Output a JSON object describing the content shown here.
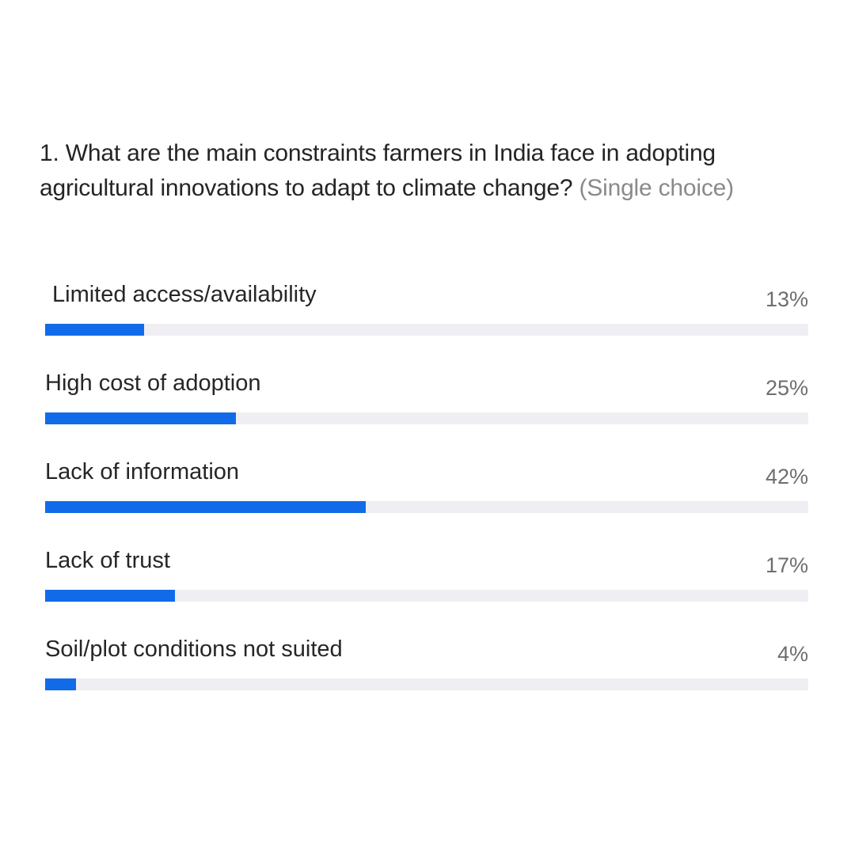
{
  "poll": {
    "question": {
      "text": "1. What are the main constraints farmers in India face in adopting agricultural innovations to adapt to climate change?",
      "type_label": "(Single choice)"
    },
    "options": [
      {
        "label": "Limited access/availability",
        "percent_label": "13%",
        "percent": 13
      },
      {
        "label": "High cost of adoption",
        "percent_label": "25%",
        "percent": 25
      },
      {
        "label": "Lack of information",
        "percent_label": "42%",
        "percent": 42
      },
      {
        "label": "Lack of trust",
        "percent_label": "17%",
        "percent": 17
      },
      {
        "label": "Soil/plot conditions not suited",
        "percent_label": "4%",
        "percent": 4
      }
    ]
  },
  "colors": {
    "bar_fill": "#116be8",
    "bar_track": "#efeff3",
    "question_text": "#242424",
    "secondary_text": "#8a8a8a"
  }
}
